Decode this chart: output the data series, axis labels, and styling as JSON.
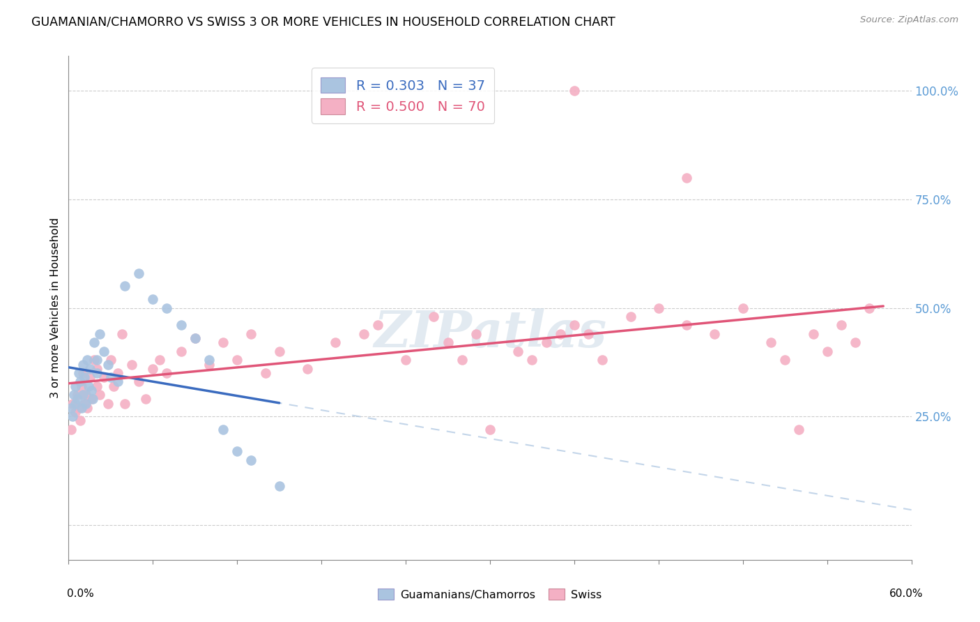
{
  "title": "GUAMANIAN/CHAMORRO VS SWISS 3 OR MORE VEHICLES IN HOUSEHOLD CORRELATION CHART",
  "source": "Source: ZipAtlas.com",
  "ylabel": "3 or more Vehicles in Household",
  "xlim": [
    0.0,
    60.0
  ],
  "ylim": [
    -8.0,
    108.0
  ],
  "legend_blue_label": "R = 0.303   N = 37",
  "legend_pink_label": "R = 0.500   N = 70",
  "blue_scatter_color": "#aac4e0",
  "blue_line_color": "#3a6bbf",
  "pink_scatter_color": "#f4b0c4",
  "pink_line_color": "#e05578",
  "dash_line_color": "#aac4e0",
  "guam_x": [
    0.2,
    0.3,
    0.4,
    0.5,
    0.5,
    0.6,
    0.7,
    0.8,
    0.9,
    1.0,
    1.0,
    1.1,
    1.2,
    1.3,
    1.4,
    1.5,
    1.6,
    1.7,
    1.8,
    2.0,
    2.0,
    2.2,
    2.5,
    2.8,
    3.0,
    3.5,
    4.0,
    5.0,
    6.0,
    7.0,
    8.0,
    9.0,
    10.0,
    11.0,
    12.0,
    13.0,
    15.0
  ],
  "guam_y": [
    27,
    25,
    30,
    28,
    32,
    29,
    35,
    33,
    27,
    37,
    30,
    34,
    28,
    38,
    32,
    36,
    31,
    29,
    42,
    35,
    38,
    44,
    40,
    37,
    34,
    33,
    55,
    58,
    52,
    50,
    46,
    43,
    38,
    22,
    17,
    15,
    9
  ],
  "swiss_x": [
    0.2,
    0.3,
    0.5,
    0.6,
    0.7,
    0.8,
    0.9,
    1.0,
    1.1,
    1.2,
    1.3,
    1.5,
    1.6,
    1.8,
    2.0,
    2.0,
    2.2,
    2.5,
    2.8,
    3.0,
    3.2,
    3.5,
    3.8,
    4.0,
    4.5,
    5.0,
    5.5,
    6.0,
    6.5,
    7.0,
    8.0,
    9.0,
    10.0,
    11.0,
    12.0,
    13.0,
    14.0,
    15.0,
    17.0,
    19.0,
    21.0,
    22.0,
    24.0,
    26.0,
    27.0,
    28.0,
    29.0,
    30.0,
    32.0,
    33.0,
    34.0,
    35.0,
    36.0,
    37.0,
    38.0,
    40.0,
    42.0,
    44.0,
    46.0,
    48.0,
    50.0,
    51.0,
    52.0,
    53.0,
    54.0,
    55.0,
    56.0,
    57.0,
    44.0,
    36.0
  ],
  "swiss_y": [
    22,
    28,
    26,
    30,
    27,
    24,
    32,
    35,
    28,
    30,
    27,
    34,
    29,
    38,
    36,
    32,
    30,
    34,
    28,
    38,
    32,
    35,
    44,
    28,
    37,
    33,
    29,
    36,
    38,
    35,
    40,
    43,
    37,
    42,
    38,
    44,
    35,
    40,
    36,
    42,
    44,
    46,
    38,
    48,
    42,
    38,
    44,
    22,
    40,
    38,
    42,
    44,
    46,
    44,
    38,
    48,
    50,
    46,
    44,
    50,
    42,
    38,
    22,
    44,
    40,
    46,
    42,
    50,
    80,
    100
  ]
}
